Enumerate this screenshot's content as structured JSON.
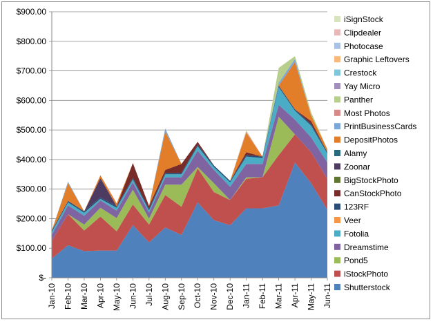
{
  "chart_data": {
    "type": "area",
    "stacked": true,
    "x": [
      "Jan-10",
      "Feb-10",
      "Mar-10",
      "Apr-10",
      "May-10",
      "Jun-10",
      "Jul-10",
      "Aug-10",
      "Sep-10",
      "Oct-10",
      "Nov-10",
      "Dec-10",
      "Jan-11",
      "Feb-11",
      "Mar-11",
      "Apr-11",
      "May-11",
      "Jun-11"
    ],
    "ylim": [
      0,
      900
    ],
    "yticks": [
      0,
      100,
      200,
      300,
      400,
      500,
      600,
      700,
      800,
      900
    ],
    "ytick_labels": [
      "$-",
      "$100.00",
      "$200.00",
      "$300.00",
      "$400.00",
      "$500.00",
      "$600.00",
      "$700.00",
      "$800.00",
      "$900.00"
    ],
    "grid": true,
    "legend_position": "right",
    "series": [
      {
        "name": "Shutterstock",
        "color": "#4F81BD",
        "values": [
          65,
          110,
          90,
          92,
          92,
          178,
          120,
          170,
          145,
          255,
          195,
          178,
          235,
          235,
          245,
          390,
          320,
          230
        ]
      },
      {
        "name": "iStockPhoto",
        "color": "#C0504D",
        "values": [
          60,
          105,
          70,
          115,
          65,
          70,
          60,
          110,
          95,
          115,
          95,
          85,
          100,
          105,
          170,
          95,
          105,
          105
        ]
      },
      {
        "name": "Pond5",
        "color": "#9BBB59",
        "values": [
          0,
          0,
          20,
          30,
          45,
          50,
          20,
          35,
          75,
          5,
          30,
          0,
          5,
          0,
          130,
          0,
          0,
          0
        ]
      },
      {
        "name": "Dreamstime",
        "color": "#8064A2",
        "values": [
          20,
          30,
          30,
          25,
          25,
          25,
          20,
          25,
          25,
          55,
          45,
          45,
          45,
          45,
          40,
          50,
          50,
          55
        ]
      },
      {
        "name": "Fotolia",
        "color": "#4BACC6",
        "values": [
          10,
          10,
          10,
          5,
          10,
          10,
          8,
          10,
          10,
          15,
          10,
          15,
          25,
          20,
          60,
          30,
          40,
          30
        ]
      },
      {
        "name": "Veer",
        "color": "#F79646",
        "values": [
          0,
          0,
          0,
          0,
          0,
          0,
          0,
          0,
          0,
          0,
          0,
          0,
          0,
          0,
          0,
          0,
          0,
          0
        ]
      },
      {
        "name": "123RF",
        "color": "#2C4D75",
        "values": [
          5,
          5,
          5,
          5,
          5,
          5,
          5,
          5,
          5,
          5,
          5,
          5,
          5,
          5,
          5,
          5,
          5,
          5
        ]
      },
      {
        "name": "CanStockPhoto",
        "color": "#772C2A",
        "values": [
          0,
          0,
          0,
          0,
          0,
          50,
          10,
          10,
          30,
          10,
          0,
          0,
          10,
          0,
          0,
          0,
          10,
          0
        ]
      },
      {
        "name": "BigStockPhoto",
        "color": "#5F7530",
        "values": [
          0,
          0,
          0,
          0,
          0,
          0,
          0,
          0,
          0,
          0,
          0,
          0,
          0,
          0,
          0,
          0,
          0,
          0
        ]
      },
      {
        "name": "Zoonar",
        "color": "#4D3B62",
        "values": [
          0,
          0,
          0,
          65,
          0,
          0,
          0,
          0,
          0,
          0,
          0,
          0,
          0,
          0,
          0,
          0,
          0,
          0
        ]
      },
      {
        "name": "Alamy",
        "color": "#276A7C",
        "values": [
          0,
          0,
          0,
          0,
          0,
          0,
          0,
          0,
          0,
          0,
          0,
          0,
          0,
          0,
          0,
          0,
          0,
          0
        ]
      },
      {
        "name": "DepositPhotos",
        "color": "#E27D29",
        "values": [
          0,
          60,
          0,
          10,
          10,
          0,
          0,
          130,
          0,
          0,
          0,
          0,
          65,
          0,
          0,
          160,
          20,
          10
        ]
      },
      {
        "name": "PrintBusinessCards",
        "color": "#7BA7D9",
        "values": [
          0,
          5,
          0,
          0,
          0,
          0,
          0,
          10,
          0,
          0,
          0,
          0,
          0,
          0,
          10,
          10,
          0,
          0
        ]
      },
      {
        "name": "Most Photos",
        "color": "#D78B88",
        "values": [
          0,
          0,
          0,
          0,
          0,
          0,
          0,
          0,
          0,
          0,
          0,
          0,
          5,
          0,
          0,
          0,
          0,
          0
        ]
      },
      {
        "name": "Panther",
        "color": "#B7CE8D",
        "values": [
          0,
          0,
          0,
          0,
          0,
          0,
          0,
          0,
          0,
          0,
          0,
          0,
          0,
          0,
          50,
          10,
          10,
          0
        ]
      },
      {
        "name": "Yay Micro",
        "color": "#A28FBC",
        "values": [
          0,
          0,
          0,
          0,
          0,
          0,
          0,
          0,
          0,
          0,
          0,
          0,
          0,
          0,
          0,
          0,
          0,
          0
        ]
      },
      {
        "name": "Crestock",
        "color": "#7FC6D9",
        "values": [
          0,
          0,
          0,
          0,
          0,
          0,
          0,
          0,
          0,
          0,
          0,
          0,
          0,
          0,
          0,
          0,
          0,
          0
        ]
      },
      {
        "name": "Graphic Leftovers",
        "color": "#F9B97A",
        "values": [
          0,
          0,
          0,
          0,
          0,
          0,
          0,
          0,
          0,
          0,
          0,
          0,
          0,
          0,
          0,
          0,
          0,
          0
        ]
      },
      {
        "name": "Photocase",
        "color": "#A9C1E2",
        "values": [
          0,
          0,
          0,
          0,
          0,
          0,
          0,
          0,
          0,
          0,
          0,
          0,
          0,
          0,
          0,
          0,
          0,
          0
        ]
      },
      {
        "name": "Clipdealer",
        "color": "#E6B8B7",
        "values": [
          0,
          0,
          0,
          0,
          0,
          0,
          0,
          0,
          0,
          0,
          0,
          0,
          0,
          0,
          0,
          0,
          0,
          0
        ]
      },
      {
        "name": "iSignStock",
        "color": "#D7E4BD",
        "values": [
          0,
          0,
          0,
          0,
          0,
          0,
          0,
          0,
          0,
          0,
          0,
          0,
          5,
          0,
          0,
          0,
          0,
          0
        ]
      }
    ]
  }
}
